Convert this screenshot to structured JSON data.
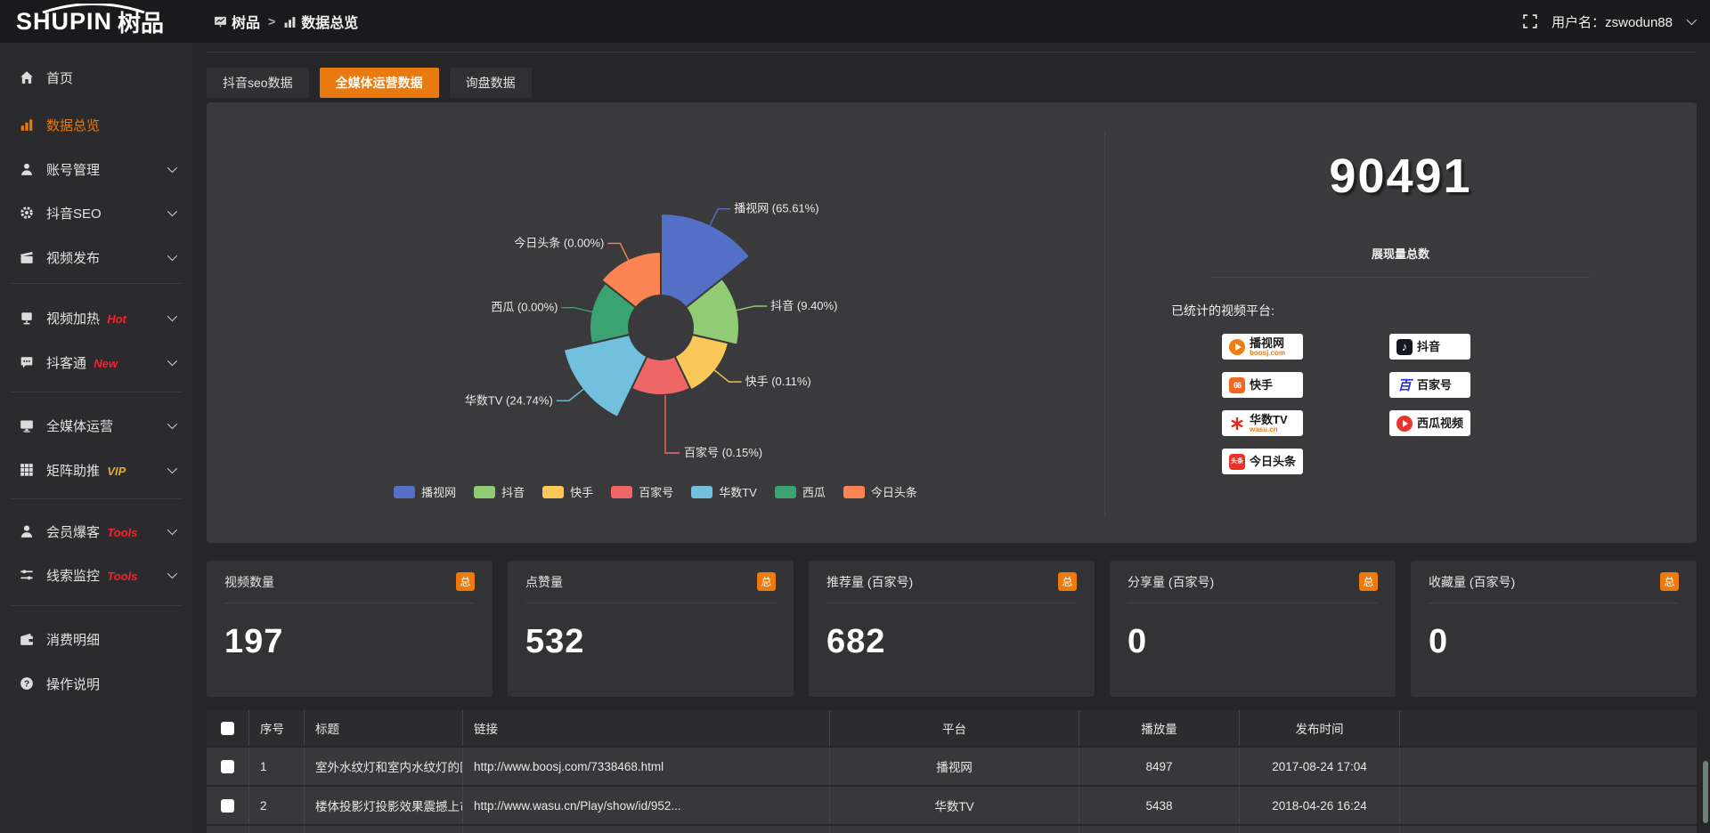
{
  "topbar": {
    "logo": "SHUPIN",
    "logo_cn": "树品",
    "breadcrumb_root": "树品",
    "breadcrumb_sep": ">",
    "breadcrumb_current": "数据总览",
    "username": "用户名：zswodun88"
  },
  "sidebar": {
    "items": [
      {
        "label": "首页",
        "icon": "home-icon",
        "badge": "",
        "badge_color": "",
        "active": false,
        "chevron": false
      },
      {
        "label": "数据总览",
        "icon": "bar-chart-icon",
        "badge": "",
        "badge_color": "",
        "active": true,
        "chevron": false
      },
      {
        "label": "账号管理",
        "icon": "user-icon",
        "badge": "",
        "badge_color": "",
        "active": false,
        "chevron": true
      },
      {
        "label": "抖音SEO",
        "icon": "gear-icon",
        "badge": "",
        "badge_color": "",
        "active": false,
        "chevron": true
      },
      {
        "label": "视频发布",
        "icon": "clapper-icon",
        "badge": "",
        "badge_color": "",
        "active": false,
        "chevron": true
      },
      {
        "label": "视频加热",
        "icon": "monitor-icon",
        "badge": "Hot",
        "badge_color": "#f5232f",
        "active": false,
        "chevron": true
      },
      {
        "label": "抖客通",
        "icon": "chat-icon",
        "badge": "New",
        "badge_color": "#f5232f",
        "active": false,
        "chevron": true
      },
      {
        "label": "全媒体运营",
        "icon": "screen-icon",
        "badge": "",
        "badge_color": "",
        "active": false,
        "chevron": true
      },
      {
        "label": "矩阵助推",
        "icon": "grid-icon",
        "badge": "VIP",
        "badge_color": "#e2a93b",
        "active": false,
        "chevron": true
      },
      {
        "label": "会员爆客",
        "icon": "member-icon",
        "badge": "Tools",
        "badge_color": "#f5232f",
        "active": false,
        "chevron": true
      },
      {
        "label": "线索监控",
        "icon": "sliders-icon",
        "badge": "Tools",
        "badge_color": "#f5232f",
        "active": false,
        "chevron": true
      },
      {
        "label": "消费明细",
        "icon": "wallet-icon",
        "badge": "",
        "badge_color": "",
        "active": false,
        "chevron": false
      },
      {
        "label": "操作说明",
        "icon": "question-icon",
        "badge": "",
        "badge_color": "",
        "active": false,
        "chevron": false
      }
    ]
  },
  "tabs": [
    {
      "label": "抖音seo数据",
      "active": false
    },
    {
      "label": "全媒体运营数据",
      "active": true
    },
    {
      "label": "询盘数据",
      "active": false
    }
  ],
  "chart_data": {
    "type": "pie",
    "subtype": "nightingale-rose",
    "unit": "%",
    "label_format": "{name} ({value}%)",
    "legend_position": "bottom",
    "series": [
      {
        "name": "播视网",
        "value": 65.61,
        "color": "#5470c6"
      },
      {
        "name": "抖音",
        "value": 9.4,
        "color": "#91cc75"
      },
      {
        "name": "快手",
        "value": 0.11,
        "color": "#fac858"
      },
      {
        "name": "百家号",
        "value": 0.15,
        "color": "#ee6666"
      },
      {
        "name": "华数TV",
        "value": 24.74,
        "color": "#73c0de"
      },
      {
        "name": "西瓜",
        "value": 0.0,
        "color": "#3ba272"
      },
      {
        "name": "今日头条",
        "value": 0.0,
        "color": "#fc8452"
      }
    ]
  },
  "summary": {
    "total_value": "90491",
    "total_label": "展现量总数",
    "platforms_title": "已统计的视频平台:",
    "platforms_left": [
      {
        "name": "播视网",
        "sub": "boosj.com",
        "glyph": "boosj-logo-icon"
      },
      {
        "name": "快手",
        "sub": "",
        "glyph": "kuaishou-logo-icon"
      },
      {
        "name": "华数TV",
        "sub": "wasu.cn",
        "glyph": "wasu-logo-icon"
      },
      {
        "name": "今日头条",
        "sub": "",
        "glyph": "toutiao-logo-icon"
      }
    ],
    "platforms_right": [
      {
        "name": "抖音",
        "sub": "",
        "glyph": "douyin-logo-icon"
      },
      {
        "name": "百家号",
        "sub": "",
        "glyph": "baijiahao-logo-icon"
      },
      {
        "name": "西瓜视频",
        "sub": "",
        "glyph": "xigua-logo-icon"
      }
    ]
  },
  "stat_cards": [
    {
      "title": "视频数量",
      "badge": "总",
      "value": "197"
    },
    {
      "title": "点赞量",
      "badge": "总",
      "value": "532"
    },
    {
      "title": "推荐量 (百家号)",
      "badge": "总",
      "value": "682"
    },
    {
      "title": "分享量 (百家号)",
      "badge": "总",
      "value": "0"
    },
    {
      "title": "收藏量 (百家号)",
      "badge": "总",
      "value": "0"
    }
  ],
  "table": {
    "headers": [
      "序号",
      "标题",
      "链接",
      "平台",
      "播放量",
      "发布时间"
    ],
    "rows": [
      {
        "index": "1",
        "title": "室外水纹灯和室内水纹灯的区别和简介",
        "link": "http://www.boosj.com/7338468.html",
        "platform": "播视网",
        "views": "8497",
        "time": "2017-08-24 17:04"
      },
      {
        "index": "2",
        "title": "楼体投影灯投影效果震撼上市",
        "link": "http://www.wasu.cn/Play/show/id/952...",
        "platform": "华数TV",
        "views": "5438",
        "time": "2018-04-26 16:24"
      }
    ]
  },
  "colors": {
    "accent": "#e87a10",
    "link": "#ef8b3f",
    "hot_badge": "#f5232f",
    "vip_badge": "#e2a93b"
  }
}
